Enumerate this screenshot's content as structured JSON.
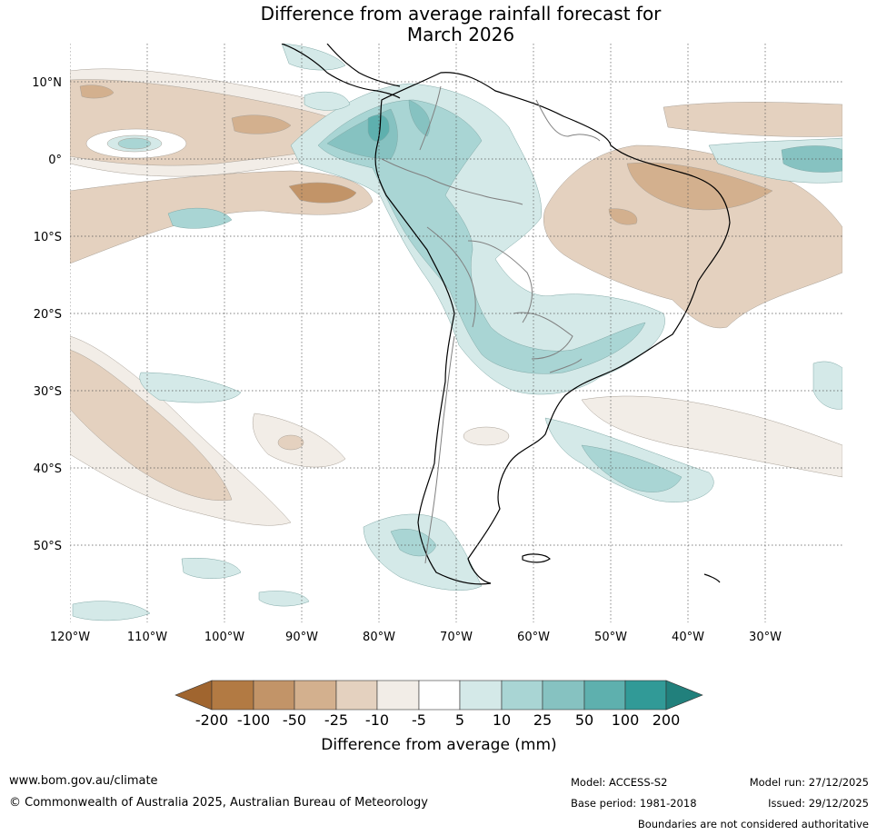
{
  "title": {
    "line1": "Difference from average rainfall forecast for",
    "line2": "March 2026"
  },
  "map": {
    "lat_labels": [
      "10°N",
      "0°",
      "10°S",
      "20°S",
      "30°S",
      "40°S",
      "50°S"
    ],
    "lon_labels": [
      "120°W",
      "110°W",
      "100°W",
      "90°W",
      "80°W",
      "70°W",
      "60°W",
      "50°W",
      "40°W",
      "30°W"
    ],
    "extent": {
      "lon_min": -120,
      "lon_max": -20,
      "lat_min": -60,
      "lat_max": 15
    }
  },
  "colorbar": {
    "ticks": [
      "-200",
      "-100",
      "-50",
      "-25",
      "-10",
      "-5",
      "5",
      "10",
      "25",
      "50",
      "100",
      "200"
    ],
    "colors": [
      "#a0652f",
      "#b27a43",
      "#c29468",
      "#d3b08e",
      "#e4d1bf",
      "#f2ede7",
      "#ffffff",
      "#d4e9e8",
      "#a9d5d4",
      "#86c2c1",
      "#5eb0ae",
      "#319a97",
      "#21807c"
    ],
    "label": "Difference from average (mm)"
  },
  "footer": {
    "website": "www.bom.gov.au/climate",
    "copyright": "© Commonwealth of Australia 2025, Australian Bureau of Meteorology",
    "model": "Model: ACCESS-S2",
    "base_period": "Base period: 1981-2018",
    "model_run": "Model run: 27/12/2025",
    "issued": "Issued: 29/12/2025",
    "disclaimer": "Boundaries are not considered authoritative"
  }
}
